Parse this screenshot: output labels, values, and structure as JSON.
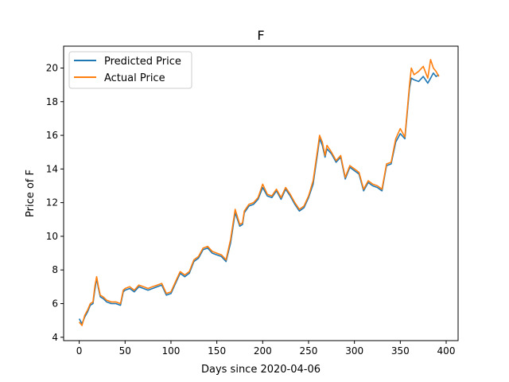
{
  "chart_data": {
    "type": "line",
    "title": "F",
    "xlabel": "Days since 2020-04-06",
    "ylabel": "Price of F",
    "xlim": [
      -17,
      413
    ],
    "ylim": [
      3.8,
      21.3
    ],
    "xticks": [
      0,
      50,
      100,
      150,
      200,
      250,
      300,
      350,
      400
    ],
    "yticks": [
      4,
      6,
      8,
      10,
      12,
      14,
      16,
      18,
      20
    ],
    "grid": false,
    "legend_position": "top-left",
    "series": [
      {
        "name": "Predicted Price",
        "color": "#1f77b4",
        "x": [
          0,
          3,
          6,
          9,
          12,
          15,
          17,
          19,
          21,
          23,
          26,
          30,
          35,
          40,
          45,
          48,
          50,
          55,
          60,
          65,
          70,
          75,
          80,
          85,
          90,
          95,
          100,
          105,
          110,
          115,
          120,
          125,
          130,
          135,
          140,
          145,
          150,
          155,
          160,
          165,
          170,
          175,
          178,
          180,
          185,
          190,
          195,
          200,
          205,
          210,
          215,
          220,
          225,
          230,
          235,
          240,
          245,
          250,
          255,
          260,
          262,
          265,
          268,
          270,
          275,
          280,
          285,
          290,
          295,
          300,
          305,
          310,
          315,
          320,
          325,
          330,
          335,
          340,
          345,
          350,
          355,
          360,
          362,
          365,
          370,
          375,
          380,
          383,
          386,
          389,
          392
        ],
        "values": [
          5.1,
          4.8,
          5.2,
          5.5,
          5.9,
          6.0,
          6.8,
          7.5,
          6.9,
          6.4,
          6.3,
          6.1,
          6.0,
          6.0,
          5.9,
          6.7,
          6.8,
          6.9,
          6.7,
          7.0,
          6.9,
          6.8,
          6.9,
          7.0,
          7.1,
          6.5,
          6.6,
          7.2,
          7.8,
          7.6,
          7.8,
          8.5,
          8.7,
          9.2,
          9.3,
          9.0,
          8.9,
          8.8,
          8.5,
          9.6,
          11.4,
          10.6,
          10.7,
          11.4,
          11.8,
          11.9,
          12.2,
          12.9,
          12.4,
          12.3,
          12.7,
          12.2,
          12.8,
          12.4,
          11.9,
          11.5,
          11.7,
          12.3,
          13.1,
          15.0,
          15.8,
          15.4,
          14.7,
          15.2,
          14.9,
          14.4,
          14.7,
          13.4,
          14.1,
          13.9,
          13.7,
          12.7,
          13.2,
          13.0,
          12.9,
          12.7,
          14.2,
          14.3,
          15.6,
          16.1,
          15.8,
          18.8,
          19.4,
          19.3,
          19.2,
          19.5,
          19.1,
          19.4,
          19.7,
          19.5,
          19.6
        ]
      },
      {
        "name": "Actual Price",
        "color": "#ff7f0e",
        "x": [
          0,
          3,
          6,
          9,
          12,
          15,
          17,
          19,
          21,
          23,
          26,
          30,
          35,
          40,
          45,
          48,
          50,
          55,
          60,
          65,
          70,
          75,
          80,
          85,
          90,
          95,
          100,
          105,
          110,
          115,
          120,
          125,
          130,
          135,
          140,
          145,
          150,
          155,
          160,
          165,
          170,
          175,
          178,
          180,
          185,
          190,
          195,
          200,
          205,
          210,
          215,
          220,
          225,
          230,
          235,
          240,
          245,
          250,
          255,
          260,
          262,
          265,
          268,
          270,
          275,
          280,
          285,
          290,
          295,
          300,
          305,
          310,
          315,
          320,
          325,
          330,
          335,
          340,
          345,
          350,
          355,
          360,
          362,
          365,
          370,
          375,
          380,
          383,
          386,
          389,
          392
        ],
        "values": [
          4.9,
          4.7,
          5.3,
          5.6,
          6.0,
          6.1,
          7.0,
          7.6,
          7.0,
          6.5,
          6.4,
          6.2,
          6.1,
          6.1,
          6.0,
          6.8,
          6.9,
          7.0,
          6.8,
          7.1,
          7.0,
          6.9,
          7.0,
          7.1,
          7.2,
          6.6,
          6.7,
          7.3,
          7.9,
          7.7,
          7.9,
          8.6,
          8.8,
          9.3,
          9.4,
          9.1,
          9.0,
          8.9,
          8.6,
          9.8,
          11.6,
          10.7,
          10.8,
          11.5,
          11.9,
          12.0,
          12.3,
          13.1,
          12.5,
          12.4,
          12.8,
          12.3,
          12.9,
          12.5,
          12.0,
          11.6,
          11.8,
          12.4,
          13.3,
          15.2,
          16.0,
          15.6,
          14.8,
          15.4,
          15.0,
          14.5,
          14.8,
          13.5,
          14.2,
          14.0,
          13.8,
          12.8,
          13.3,
          13.1,
          13.0,
          12.8,
          14.3,
          14.4,
          15.8,
          16.4,
          15.9,
          19.0,
          20.0,
          19.6,
          19.8,
          20.1,
          19.4,
          20.5,
          20.0,
          19.8,
          19.5
        ]
      }
    ]
  }
}
